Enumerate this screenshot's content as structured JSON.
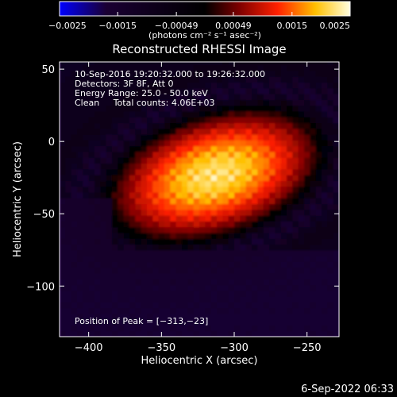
{
  "chart_data": {
    "type": "heatmap",
    "title": "Reconstructed RHESSI Image",
    "xlabel": "Heliocentric X (arcsec)",
    "ylabel": "Heliocentric Y (arcsec)",
    "xlim": [
      -420,
      -228
    ],
    "ylim": [
      -135,
      55
    ],
    "xticks": [
      -400,
      -350,
      -300,
      -250
    ],
    "xtick_labels": [
      "−400",
      "−350",
      "−300",
      "−250"
    ],
    "yticks": [
      50,
      0,
      -50,
      -100
    ],
    "ytick_labels": [
      "50",
      "0",
      "−50",
      "−100"
    ],
    "annotations": [
      "10-Sep-2016 19:20:32.000 to 19:26:32.000",
      "Detectors: 3F 8F, Att 0",
      "Energy Range: 25.0 - 50.0 keV",
      "Clean     Total counts: 4.06E+03"
    ],
    "peak_label": "Position of Peak = [−313,−23]",
    "peak_position": [
      -313,
      -23
    ],
    "colorbar": {
      "range": [
        -0.0025,
        0.0025
      ],
      "ticks": [
        -0.0025,
        -0.0015,
        -0.00049,
        0.00049,
        0.0015,
        0.0025
      ],
      "tick_labels": [
        "−0.0025",
        "−0.0015",
        "−0.00049",
        "0.00049",
        "0.0015",
        "0.0025"
      ],
      "units_label": "(photons cm⁻² s⁻¹ asec⁻²)",
      "colormap": [
        "#0000ff",
        "#1a0033",
        "#000000",
        "#7f0000",
        "#ff2000",
        "#ffc000",
        "#ffffe0"
      ]
    },
    "background_color": "#4a0090",
    "grid": false
  },
  "footer_timestamp": "6-Sep-2022 06:33"
}
